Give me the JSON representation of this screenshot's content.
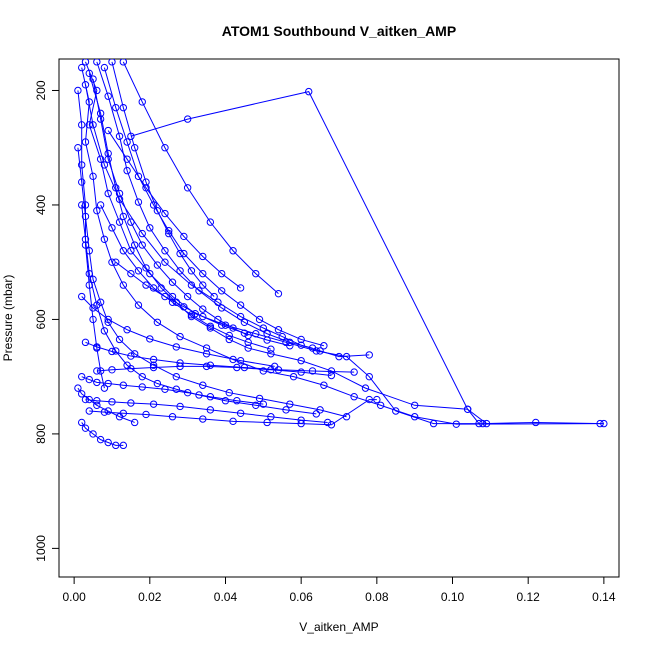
{
  "chart_data": {
    "type": "line",
    "title": "ATOM1 Southbound V_aitken_AMP",
    "xlabel": "V_aitken_AMP",
    "ylabel": "Pressure (mbar)",
    "xlim": [
      -0.004,
      0.144
    ],
    "ylim": [
      1050,
      145
    ],
    "y_reversed": true,
    "x_ticks": [
      0.0,
      0.02,
      0.04,
      0.06,
      0.08,
      0.1,
      0.12,
      0.14
    ],
    "x_tick_labels": [
      "0.00",
      "0.02",
      "0.04",
      "0.06",
      "0.08",
      "0.10",
      "0.12",
      "0.14"
    ],
    "y_ticks": [
      200,
      400,
      600,
      800,
      1000
    ],
    "y_tick_labels": [
      "200",
      "400",
      "600",
      "800",
      "1000"
    ],
    "grid": false,
    "marker": "open-circle",
    "color": "#0000ff",
    "series": [
      {
        "x": [
          0.003,
          0.006,
          0.004,
          0.007,
          0.009,
          0.012,
          0.015,
          0.02,
          0.026,
          0.032,
          0.04,
          0.048,
          0.056,
          0.064,
          0.072,
          0.078,
          0.085,
          0.095,
          0.108,
          0.122,
          0.14
        ],
        "y": [
          150,
          200,
          260,
          320,
          380,
          430,
          480,
          520,
          560,
          590,
          610,
          625,
          640,
          655,
          665,
          700,
          760,
          782,
          782,
          780,
          782
        ]
      },
      {
        "x": [
          0.002,
          0.004,
          0.003,
          0.005,
          0.006,
          0.008,
          0.01,
          0.013,
          0.017,
          0.022,
          0.028,
          0.035,
          0.042,
          0.05,
          0.058,
          0.066,
          0.074,
          0.081,
          0.09,
          0.101,
          0.139
        ],
        "y": [
          160,
          220,
          290,
          350,
          410,
          460,
          500,
          540,
          575,
          605,
          630,
          650,
          670,
          690,
          700,
          715,
          735,
          750,
          770,
          783,
          782
        ]
      },
      {
        "x": [
          0.004,
          0.007,
          0.009,
          0.011,
          0.013,
          0.016,
          0.019,
          0.023,
          0.027,
          0.031,
          0.036,
          0.041,
          0.046,
          0.052,
          0.06,
          0.068,
          0.077,
          0.09,
          0.104,
          0.107
        ],
        "y": [
          170,
          240,
          310,
          370,
          420,
          470,
          510,
          545,
          570,
          595,
          615,
          635,
          650,
          660,
          672,
          690,
          720,
          750,
          757,
          782
        ]
      },
      {
        "x": [
          0.015,
          0.03,
          0.062,
          0.104,
          0.109
        ],
        "y": [
          280,
          250,
          202,
          757,
          782
        ]
      },
      {
        "x": [
          0.003,
          0.005,
          0.008,
          0.012,
          0.018,
          0.024,
          0.031,
          0.038,
          0.044,
          0.05,
          0.055,
          0.06,
          0.065,
          0.07,
          0.078
        ],
        "y": [
          190,
          260,
          330,
          390,
          450,
          500,
          540,
          570,
          595,
          615,
          630,
          645,
          655,
          665,
          662
        ]
      },
      {
        "x": [
          0.006,
          0.009,
          0.012,
          0.014,
          0.017,
          0.02,
          0.024,
          0.028,
          0.033,
          0.039,
          0.045,
          0.051,
          0.057,
          0.063
        ],
        "y": [
          150,
          210,
          280,
          340,
          395,
          440,
          480,
          515,
          550,
          580,
          605,
          625,
          640,
          650
        ]
      },
      {
        "x": [
          0.001,
          0.002,
          0.003,
          0.004,
          0.005,
          0.007,
          0.009,
          0.012,
          0.016,
          0.021,
          0.027,
          0.034,
          0.041,
          0.049,
          0.057,
          0.065,
          0.072
        ],
        "y": [
          300,
          360,
          420,
          480,
          530,
          570,
          605,
          635,
          660,
          680,
          700,
          715,
          728,
          738,
          748,
          758,
          770
        ]
      },
      {
        "x": [
          0.008,
          0.011,
          0.014,
          0.017,
          0.021,
          0.025,
          0.029,
          0.034,
          0.039,
          0.044,
          0.049,
          0.054,
          0.06,
          0.066
        ],
        "y": [
          160,
          230,
          290,
          350,
          400,
          445,
          485,
          520,
          550,
          575,
          600,
          618,
          635,
          646
        ]
      },
      {
        "x": [
          0.002,
          0.003,
          0.004,
          0.006,
          0.008,
          0.011,
          0.014,
          0.018,
          0.022,
          0.027,
          0.033,
          0.04,
          0.048,
          0.056,
          0.064
        ],
        "y": [
          400,
          460,
          520,
          575,
          620,
          655,
          680,
          700,
          712,
          722,
          732,
          742,
          750,
          758,
          765
        ]
      },
      {
        "x": [
          0.01,
          0.013,
          0.016,
          0.019,
          0.022,
          0.025,
          0.028,
          0.031,
          0.034,
          0.037
        ],
        "y": [
          150,
          230,
          300,
          360,
          410,
          450,
          485,
          515,
          540,
          560
        ]
      },
      {
        "x": [
          0.005,
          0.007,
          0.009,
          0.012,
          0.015,
          0.018,
          0.022,
          0.026,
          0.03,
          0.034,
          0.038,
          0.042,
          0.046
        ],
        "y": [
          180,
          250,
          320,
          380,
          430,
          470,
          505,
          535,
          560,
          582,
          600,
          615,
          628
        ]
      },
      {
        "x": [
          0.002,
          0.004,
          0.006,
          0.009,
          0.013,
          0.018,
          0.024,
          0.03,
          0.036,
          0.043,
          0.05
        ],
        "y": [
          700,
          705,
          710,
          712,
          715,
          718,
          722,
          728,
          735,
          742,
          748
        ]
      },
      {
        "x": [
          0.003,
          0.006,
          0.01,
          0.015,
          0.021,
          0.028,
          0.036,
          0.044,
          0.052,
          0.06,
          0.067
        ],
        "y": [
          740,
          742,
          744,
          746,
          748,
          752,
          758,
          764,
          770,
          776,
          780
        ]
      },
      {
        "x": [
          0.004,
          0.008,
          0.013,
          0.019,
          0.026,
          0.034,
          0.042,
          0.051,
          0.06,
          0.068,
          0.078,
          0.08
        ],
        "y": [
          760,
          762,
          764,
          766,
          770,
          774,
          778,
          780,
          782,
          784,
          740,
          740
        ]
      },
      {
        "x": [
          0.002,
          0.003,
          0.005,
          0.007,
          0.009,
          0.011,
          0.013
        ],
        "y": [
          780,
          790,
          800,
          810,
          815,
          820,
          820
        ]
      },
      {
        "x": [
          0.013,
          0.018,
          0.024,
          0.03,
          0.036,
          0.042,
          0.048,
          0.054
        ],
        "y": [
          150,
          220,
          300,
          370,
          430,
          480,
          520,
          555
        ]
      },
      {
        "x": [
          0.001,
          0.002,
          0.002,
          0.003,
          0.003,
          0.004,
          0.005,
          0.006,
          0.007,
          0.008
        ],
        "y": [
          200,
          260,
          330,
          400,
          470,
          540,
          600,
          650,
          690,
          720
        ]
      },
      {
        "x": [
          0.007,
          0.01,
          0.013,
          0.017,
          0.021,
          0.026,
          0.031,
          0.036,
          0.041,
          0.046,
          0.052
        ],
        "y": [
          400,
          440,
          480,
          515,
          545,
          570,
          592,
          612,
          628,
          640,
          652
        ]
      },
      {
        "x": [
          0.006,
          0.01,
          0.015,
          0.021,
          0.028,
          0.035,
          0.043,
          0.052,
          0.06,
          0.068
        ],
        "y": [
          690,
          688,
          686,
          684,
          682,
          682,
          684,
          688,
          692,
          698
        ]
      },
      {
        "x": [
          0.009,
          0.014,
          0.019,
          0.024,
          0.029,
          0.034,
          0.039,
          0.044
        ],
        "y": [
          270,
          320,
          370,
          415,
          455,
          490,
          520,
          545
        ]
      },
      {
        "x": [
          0.002,
          0.005,
          0.009,
          0.014,
          0.02,
          0.027,
          0.035,
          0.044,
          0.053
        ],
        "y": [
          560,
          580,
          600,
          618,
          634,
          648,
          660,
          672,
          682
        ]
      },
      {
        "x": [
          0.011,
          0.015,
          0.019,
          0.024,
          0.029,
          0.034,
          0.039,
          0.045,
          0.051,
          0.057
        ],
        "y": [
          500,
          520,
          540,
          560,
          578,
          595,
          610,
          624,
          636,
          646
        ]
      },
      {
        "x": [
          0.003,
          0.006,
          0.01,
          0.015,
          0.021,
          0.028,
          0.036,
          0.045,
          0.054,
          0.063,
          0.074
        ],
        "y": [
          640,
          648,
          656,
          664,
          670,
          676,
          680,
          684,
          688,
          690,
          692
        ]
      },
      {
        "x": [
          0.001,
          0.002,
          0.004,
          0.006,
          0.009,
          0.012,
          0.016
        ],
        "y": [
          720,
          730,
          740,
          750,
          760,
          770,
          780
        ]
      }
    ]
  }
}
